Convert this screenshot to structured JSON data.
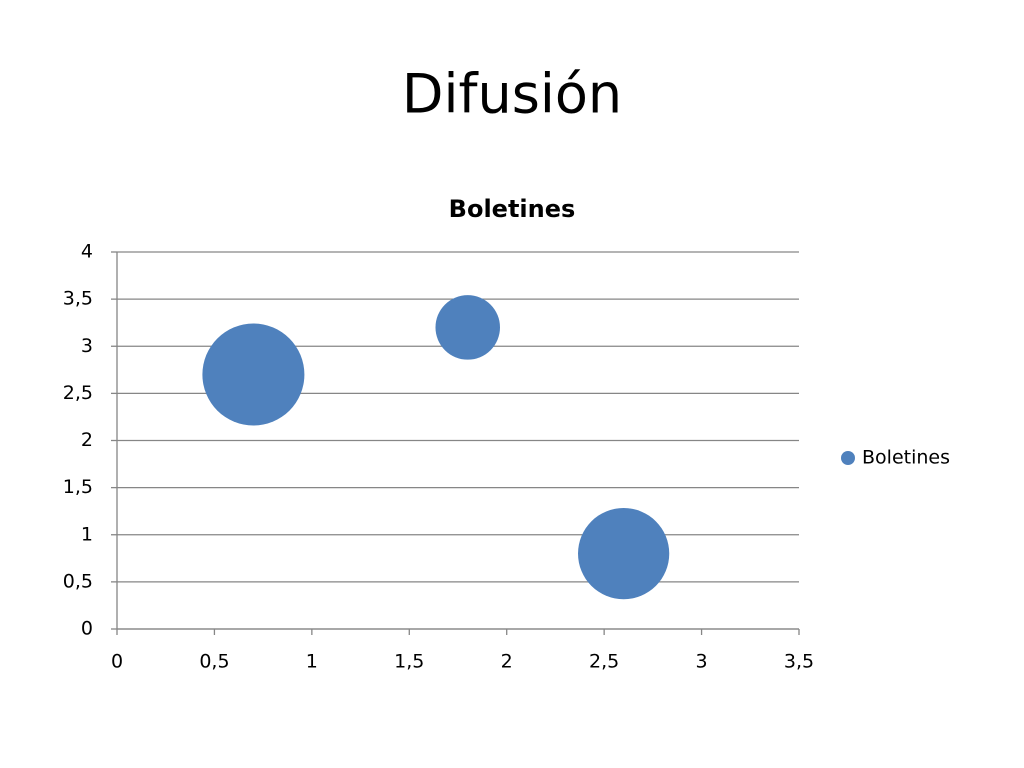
{
  "slide_title": "Difusión",
  "chart_data": {
    "type": "bubble",
    "title": "Boletines",
    "x": [
      0.7,
      1.8,
      2.6
    ],
    "series": [
      {
        "name": "Boletines",
        "color": "#4f81bd",
        "values": [
          2.7,
          3.2,
          0.8
        ],
        "sizes": [
          10,
          4,
          8
        ]
      }
    ],
    "xlim": [
      0,
      3.5
    ],
    "ylim": [
      0,
      4
    ],
    "xticks": [
      0,
      {
        "value": 0.5,
        "label": "0,5"
      },
      1,
      {
        "value": 1.5,
        "label": "1,5"
      },
      2,
      {
        "value": 2.5,
        "label": "2,5"
      },
      3,
      {
        "value": 3.5,
        "label": "3,5"
      }
    ],
    "yticks": [
      0,
      {
        "value": 0.5,
        "label": "0,5"
      },
      1,
      {
        "value": 1.5,
        "label": "1,5"
      },
      2,
      {
        "value": 2.5,
        "label": "2,5"
      },
      3,
      {
        "value": 3.5,
        "label": "3,5"
      },
      4
    ],
    "grid": true,
    "legend": "right"
  }
}
